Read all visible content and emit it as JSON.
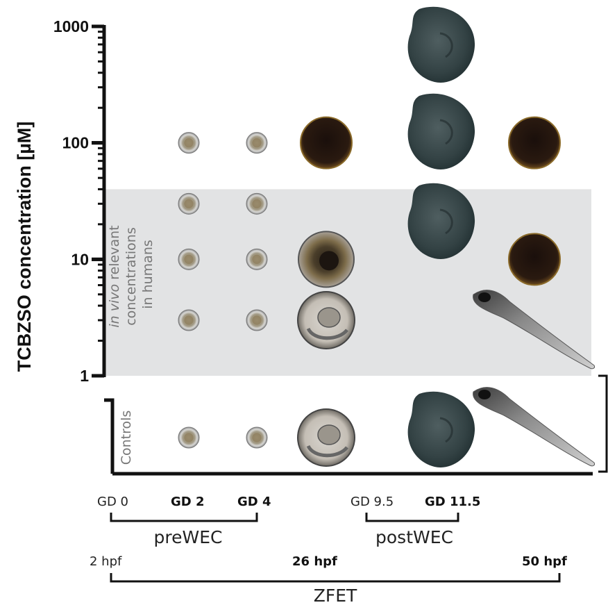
{
  "chart_data": {
    "type": "scatter",
    "ylabel": "TCBZSO concentration [µM]",
    "yscale": "log",
    "ylim": [
      1,
      1000
    ],
    "yticks": [
      "1",
      "10",
      "100",
      "1000"
    ],
    "band": {
      "range": [
        1,
        40
      ],
      "label_italic": "in vivo",
      "label_rest": "relevant",
      "label_line2": "concentrations",
      "label_line3": "in humans"
    },
    "controls_label": "Controls",
    "columns": [
      {
        "id": "GD2",
        "label": "GD 2",
        "images": [
          {
            "y": 100,
            "kind": "early-embryo"
          },
          {
            "y": 30,
            "kind": "early-embryo"
          },
          {
            "y": 10,
            "kind": "early-embryo"
          },
          {
            "y": 3,
            "kind": "early-embryo"
          },
          {
            "y": "control",
            "kind": "early-embryo"
          }
        ]
      },
      {
        "id": "GD4",
        "label": "GD 4",
        "images": [
          {
            "y": 100,
            "kind": "early-embryo"
          },
          {
            "y": 30,
            "kind": "early-embryo"
          },
          {
            "y": 10,
            "kind": "early-embryo"
          },
          {
            "y": 3,
            "kind": "early-embryo"
          },
          {
            "y": "control",
            "kind": "early-embryo"
          }
        ]
      },
      {
        "id": "26hpf",
        "label": "26 hpf",
        "images": [
          {
            "y": 100,
            "kind": "dark-egg"
          },
          {
            "y": 10,
            "kind": "mottled-egg"
          },
          {
            "y": 3,
            "kind": "zebrafish-embryo"
          },
          {
            "y": "control",
            "kind": "zebrafish-embryo"
          }
        ]
      },
      {
        "id": "GD11.5",
        "label": "GD 11.5",
        "images": [
          {
            "y": 1000,
            "kind": "mouse-embryo"
          },
          {
            "y": 100,
            "kind": "mouse-embryo"
          },
          {
            "y": 30,
            "kind": "mouse-embryo"
          },
          {
            "y": "control",
            "kind": "mouse-embryo"
          }
        ]
      },
      {
        "id": "50hpf",
        "label": "50 hpf",
        "images": [
          {
            "y": 100,
            "kind": "dark-egg"
          },
          {
            "y": 10,
            "kind": "dark-egg"
          },
          {
            "y": 3,
            "kind": "zebrafish-larva"
          },
          {
            "y": "control",
            "kind": "zebrafish-larva"
          }
        ]
      }
    ]
  },
  "timelines": {
    "prewec": {
      "name": "preWEC",
      "start": "GD 0",
      "mid": "GD 2",
      "end": "GD 4"
    },
    "postwec": {
      "name": "postWEC",
      "start": "GD 9.5",
      "end": "GD 11.5"
    },
    "zfet": {
      "name": "ZFET",
      "start": "2 hpf",
      "mid": "26 hpf",
      "end": "50 hpf"
    }
  }
}
